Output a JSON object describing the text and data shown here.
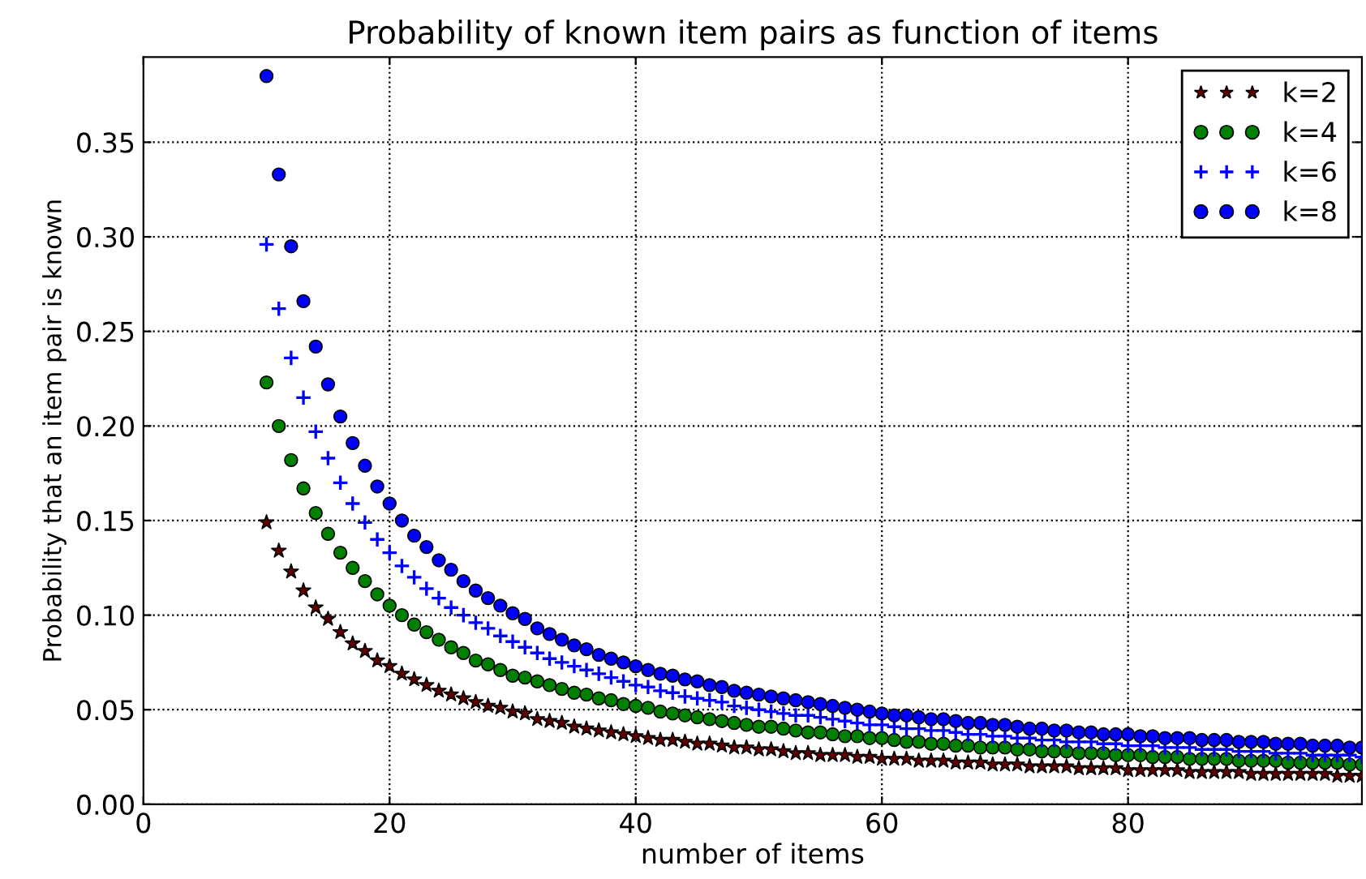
{
  "chart_data": {
    "type": "scatter",
    "title": "Probability of known item pairs as function of items",
    "xlabel": "number of items",
    "ylabel": "Probability that an item pair is known",
    "x": [
      10,
      11,
      12,
      13,
      14,
      15,
      16,
      17,
      18,
      19,
      20,
      21,
      22,
      23,
      24,
      25,
      26,
      27,
      28,
      29,
      30,
      31,
      32,
      33,
      34,
      35,
      36,
      37,
      38,
      39,
      40,
      41,
      42,
      43,
      44,
      45,
      46,
      47,
      48,
      49,
      50,
      51,
      52,
      53,
      54,
      55,
      56,
      57,
      58,
      59,
      60,
      61,
      62,
      63,
      64,
      65,
      66,
      67,
      68,
      69,
      70,
      71,
      72,
      73,
      74,
      75,
      76,
      77,
      78,
      79,
      80,
      81,
      82,
      83,
      84,
      85,
      86,
      87,
      88,
      89,
      90,
      91,
      92,
      93,
      94,
      95,
      96,
      97,
      98,
      99
    ],
    "series": [
      {
        "name": "k=2",
        "color": "#660000",
        "marker": "star",
        "values": [
          0.149,
          0.134,
          0.123,
          0.113,
          0.104,
          0.098,
          0.091,
          0.085,
          0.081,
          0.076,
          0.073,
          0.069,
          0.066,
          0.063,
          0.06,
          0.058,
          0.056,
          0.054,
          0.052,
          0.051,
          0.049,
          0.048,
          0.045,
          0.044,
          0.043,
          0.041,
          0.04,
          0.039,
          0.038,
          0.037,
          0.036,
          0.035,
          0.034,
          0.034,
          0.033,
          0.032,
          0.032,
          0.031,
          0.03,
          0.03,
          0.029,
          0.029,
          0.028,
          0.027,
          0.027,
          0.026,
          0.026,
          0.026,
          0.025,
          0.025,
          0.024,
          0.024,
          0.024,
          0.023,
          0.023,
          0.023,
          0.022,
          0.022,
          0.022,
          0.021,
          0.021,
          0.021,
          0.02,
          0.02,
          0.02,
          0.02,
          0.019,
          0.019,
          0.019,
          0.019,
          0.018,
          0.018,
          0.018,
          0.018,
          0.018,
          0.017,
          0.017,
          0.017,
          0.017,
          0.017,
          0.016,
          0.016,
          0.016,
          0.016,
          0.016,
          0.016,
          0.016,
          0.015,
          0.015,
          0.015
        ]
      },
      {
        "name": "k=4",
        "color": "#008000",
        "marker": "circle",
        "values": [
          0.223,
          0.2,
          0.182,
          0.167,
          0.154,
          0.143,
          0.133,
          0.125,
          0.118,
          0.111,
          0.105,
          0.1,
          0.095,
          0.091,
          0.087,
          0.083,
          0.08,
          0.076,
          0.074,
          0.071,
          0.068,
          0.067,
          0.065,
          0.063,
          0.061,
          0.059,
          0.058,
          0.056,
          0.055,
          0.053,
          0.052,
          0.051,
          0.049,
          0.048,
          0.047,
          0.046,
          0.045,
          0.044,
          0.043,
          0.042,
          0.041,
          0.041,
          0.04,
          0.039,
          0.038,
          0.038,
          0.037,
          0.036,
          0.036,
          0.035,
          0.035,
          0.034,
          0.033,
          0.033,
          0.032,
          0.032,
          0.031,
          0.031,
          0.03,
          0.03,
          0.03,
          0.029,
          0.029,
          0.028,
          0.028,
          0.028,
          0.027,
          0.027,
          0.027,
          0.026,
          0.026,
          0.026,
          0.025,
          0.025,
          0.025,
          0.024,
          0.024,
          0.024,
          0.024,
          0.023,
          0.023,
          0.023,
          0.023,
          0.022,
          0.022,
          0.022,
          0.022,
          0.022,
          0.021,
          0.021
        ]
      },
      {
        "name": "k=6",
        "color": "#0000ff",
        "marker": "cross",
        "values": [
          0.296,
          0.262,
          0.236,
          0.215,
          0.197,
          0.183,
          0.17,
          0.159,
          0.149,
          0.14,
          0.133,
          0.126,
          0.12,
          0.114,
          0.109,
          0.104,
          0.1,
          0.096,
          0.093,
          0.089,
          0.086,
          0.083,
          0.08,
          0.077,
          0.075,
          0.073,
          0.071,
          0.069,
          0.067,
          0.065,
          0.063,
          0.062,
          0.06,
          0.059,
          0.057,
          0.056,
          0.055,
          0.054,
          0.052,
          0.051,
          0.05,
          0.049,
          0.048,
          0.047,
          0.047,
          0.046,
          0.045,
          0.044,
          0.043,
          0.042,
          0.042,
          0.041,
          0.04,
          0.04,
          0.039,
          0.039,
          0.038,
          0.037,
          0.037,
          0.036,
          0.036,
          0.035,
          0.035,
          0.034,
          0.034,
          0.033,
          0.033,
          0.033,
          0.032,
          0.032,
          0.031,
          0.031,
          0.031,
          0.03,
          0.03,
          0.03,
          0.029,
          0.029,
          0.029,
          0.028,
          0.028,
          0.028,
          0.027,
          0.027,
          0.027,
          0.026,
          0.026,
          0.026,
          0.026,
          0.025
        ]
      },
      {
        "name": "k=8",
        "color": "#0000ff",
        "marker": "circle",
        "values": [
          0.385,
          0.333,
          0.295,
          0.266,
          0.242,
          0.222,
          0.205,
          0.191,
          0.179,
          0.168,
          0.159,
          0.15,
          0.142,
          0.136,
          0.129,
          0.124,
          0.118,
          0.113,
          0.109,
          0.105,
          0.101,
          0.098,
          0.093,
          0.09,
          0.087,
          0.084,
          0.082,
          0.079,
          0.077,
          0.075,
          0.073,
          0.071,
          0.069,
          0.068,
          0.066,
          0.065,
          0.063,
          0.062,
          0.06,
          0.059,
          0.058,
          0.057,
          0.056,
          0.055,
          0.054,
          0.053,
          0.052,
          0.051,
          0.05,
          0.049,
          0.048,
          0.047,
          0.047,
          0.046,
          0.045,
          0.045,
          0.044,
          0.043,
          0.043,
          0.042,
          0.042,
          0.041,
          0.04,
          0.04,
          0.039,
          0.039,
          0.038,
          0.038,
          0.037,
          0.037,
          0.037,
          0.036,
          0.036,
          0.035,
          0.035,
          0.035,
          0.034,
          0.034,
          0.034,
          0.033,
          0.033,
          0.033,
          0.032,
          0.032,
          0.032,
          0.031,
          0.031,
          0.031,
          0.03,
          0.03
        ]
      }
    ],
    "xlim": [
      0,
      99
    ],
    "xticks": [
      0,
      20,
      40,
      60,
      80
    ],
    "ylim": [
      0,
      0.395
    ],
    "yticks": [
      {
        "value": 0,
        "label": "0.00"
      },
      {
        "value": 0.05,
        "label": "0.05"
      },
      {
        "value": 0.1,
        "label": "0.10"
      },
      {
        "value": 0.15,
        "label": "0.15"
      },
      {
        "value": 0.2,
        "label": "0.20"
      },
      {
        "value": 0.25,
        "label": "0.25"
      },
      {
        "value": 0.3,
        "label": "0.30"
      },
      {
        "value": 0.35,
        "label": "0.35"
      }
    ],
    "grid": true,
    "legend": "top right"
  }
}
